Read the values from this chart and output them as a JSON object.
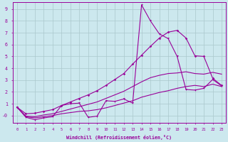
{
  "xlabel": "Windchill (Refroidissement éolien,°C)",
  "bg_color": "#cce8ee",
  "grid_color": "#aac8cc",
  "line_color": "#990099",
  "xlim_min": -0.5,
  "xlim_max": 23.5,
  "ylim_min": -0.6,
  "ylim_max": 9.6,
  "xticks": [
    0,
    1,
    2,
    3,
    4,
    5,
    6,
    7,
    8,
    9,
    10,
    11,
    12,
    13,
    14,
    15,
    16,
    17,
    18,
    19,
    20,
    21,
    22,
    23
  ],
  "yticks": [
    0,
    1,
    2,
    3,
    4,
    5,
    6,
    7,
    8,
    9
  ],
  "ytick_labels": [
    "-0",
    "1",
    "2",
    "3",
    "4",
    "5",
    "6",
    "7",
    "8",
    "9"
  ],
  "line1_x": [
    0,
    1,
    2,
    3,
    4,
    5,
    6,
    7,
    8,
    9,
    10,
    11,
    12,
    13,
    14,
    15,
    16,
    17,
    18,
    19,
    20,
    21,
    22,
    23
  ],
  "line1_y": [
    0.7,
    -0.15,
    -0.35,
    -0.2,
    -0.1,
    0.85,
    1.0,
    1.05,
    -0.15,
    -0.05,
    1.25,
    1.2,
    1.4,
    1.05,
    9.35,
    8.0,
    6.9,
    6.5,
    5.0,
    2.2,
    2.15,
    2.3,
    3.05,
    2.5
  ],
  "line2_x": [
    0,
    1,
    2,
    3,
    4,
    5,
    6,
    7,
    8,
    9,
    10,
    11,
    12,
    13,
    14,
    15,
    16,
    17,
    18,
    19,
    20,
    21,
    22,
    23
  ],
  "line2_y": [
    0.7,
    -0.1,
    -0.2,
    -0.1,
    0.0,
    0.15,
    0.25,
    0.35,
    0.4,
    0.5,
    0.65,
    0.85,
    1.05,
    1.25,
    1.55,
    1.75,
    1.95,
    2.1,
    2.3,
    2.45,
    2.55,
    2.45,
    2.65,
    2.45
  ],
  "line3_x": [
    0,
    1,
    2,
    3,
    4,
    5,
    6,
    7,
    8,
    9,
    10,
    11,
    12,
    13,
    14,
    15,
    16,
    17,
    18,
    19,
    20,
    21,
    22,
    23
  ],
  "line3_y": [
    0.7,
    -0.05,
    -0.1,
    0.05,
    0.15,
    0.35,
    0.55,
    0.75,
    0.95,
    1.15,
    1.45,
    1.75,
    2.05,
    2.45,
    2.85,
    3.2,
    3.4,
    3.55,
    3.6,
    3.7,
    3.55,
    3.5,
    3.65,
    3.5
  ],
  "line4_x": [
    0,
    1,
    2,
    3,
    4,
    5,
    6,
    7,
    8,
    9,
    10,
    11,
    12,
    13,
    14,
    15,
    16,
    17,
    18,
    19,
    20,
    21,
    22,
    23
  ],
  "line4_y": [
    0.7,
    0.15,
    0.2,
    0.35,
    0.5,
    0.85,
    1.15,
    1.45,
    1.75,
    2.1,
    2.55,
    3.05,
    3.55,
    4.35,
    5.1,
    5.85,
    6.55,
    7.05,
    7.2,
    6.55,
    5.05,
    5.0,
    3.15,
    2.55
  ]
}
